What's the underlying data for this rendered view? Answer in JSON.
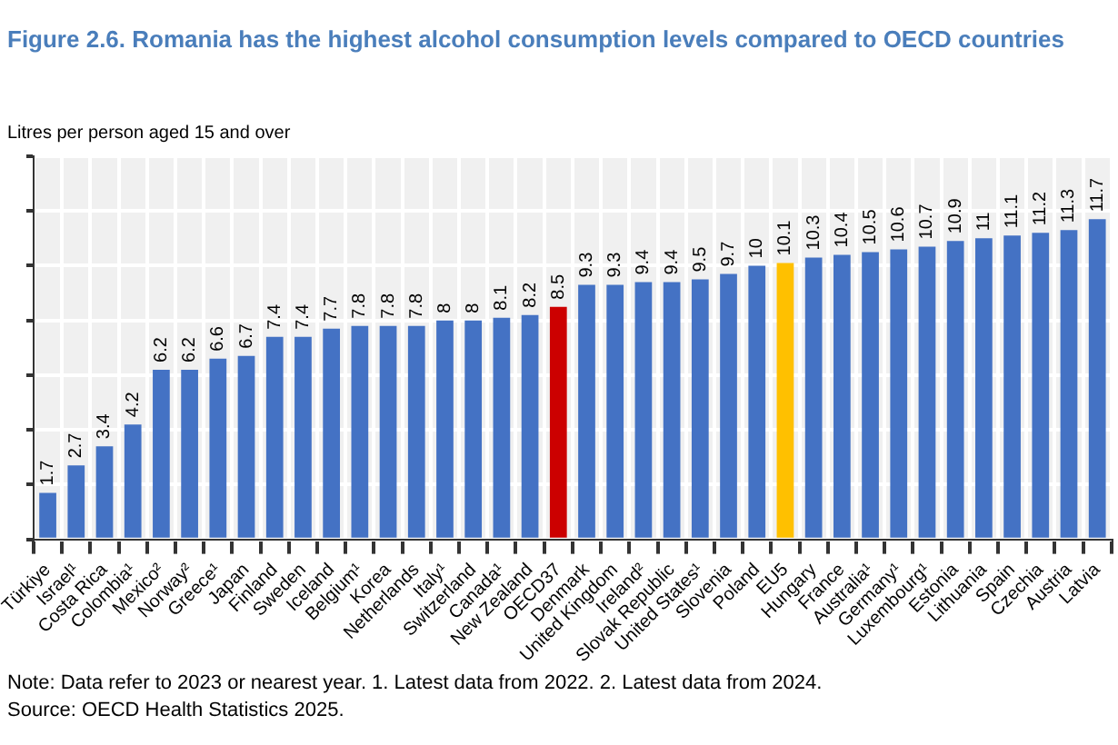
{
  "chart_data": {
    "type": "bar",
    "title": "Figure 2.6. Romania has the highest alcohol consumption levels compared to OECD countries",
    "ylabel": "Litres per person aged 15 and over",
    "categories": [
      "Türkiye",
      "Israel¹",
      "Costa Rica",
      "Colombia¹",
      "Mexico²",
      "Norway²",
      "Greece¹",
      "Japan",
      "Finland",
      "Sweden",
      "Iceland",
      "Belgium¹",
      "Korea",
      "Netherlands",
      "Italy¹",
      "Switzerland",
      "Canada¹",
      "New Zealand",
      "OECD37",
      "Denmark",
      "United Kingdom",
      "Ireland²",
      "Slovak Republic",
      "United States¹",
      "Slovenia",
      "Poland",
      "EU5",
      "Hungary",
      "France",
      "Australia¹",
      "Germany¹",
      "Luxembourg¹",
      "Estonia",
      "Lithuania",
      "Spain",
      "Czechia",
      "Austria",
      "Latvia"
    ],
    "values": [
      1.7,
      2.7,
      3.4,
      4.2,
      6.2,
      6.2,
      6.6,
      6.7,
      7.4,
      7.4,
      7.7,
      7.8,
      7.8,
      7.8,
      8,
      8,
      8.1,
      8.2,
      8.5,
      9.3,
      9.3,
      9.4,
      9.4,
      9.5,
      9.7,
      10,
      10.1,
      10.3,
      10.4,
      10.5,
      10.6,
      10.7,
      10.9,
      11,
      11.1,
      11.2,
      11.3,
      11.7
    ],
    "colors": [
      "#4472c4",
      "#4472c4",
      "#4472c4",
      "#4472c4",
      "#4472c4",
      "#4472c4",
      "#4472c4",
      "#4472c4",
      "#4472c4",
      "#4472c4",
      "#4472c4",
      "#4472c4",
      "#4472c4",
      "#4472c4",
      "#4472c4",
      "#4472c4",
      "#4472c4",
      "#4472c4",
      "#cc0000",
      "#4472c4",
      "#4472c4",
      "#4472c4",
      "#4472c4",
      "#4472c4",
      "#4472c4",
      "#4472c4",
      "#ffc000",
      "#4472c4",
      "#4472c4",
      "#4472c4",
      "#4472c4",
      "#4472c4",
      "#4472c4",
      "#4472c4",
      "#4472c4",
      "#4472c4",
      "#4472c4",
      "#4472c4"
    ],
    "ylim": [
      0,
      14
    ],
    "yticks": [
      {
        "value": 0,
        "label": null
      },
      {
        "value": 2,
        "label": null
      },
      {
        "value": 4,
        "label": null
      },
      {
        "value": 6,
        "label": null
      },
      {
        "value": 8,
        "label": null
      },
      {
        "value": 10,
        "label": null
      },
      {
        "value": 12,
        "label": null
      },
      {
        "value": 14,
        "label": null
      }
    ],
    "tick_labels": "x",
    "grid": true,
    "legend": false,
    "data_labels": true,
    "annotations": [
      "Note: Data refer to 2023 or nearest year. 1. Latest data from 2022. 2. Latest data from 2024.",
      "Source: OECD Health Statistics 2025."
    ]
  }
}
